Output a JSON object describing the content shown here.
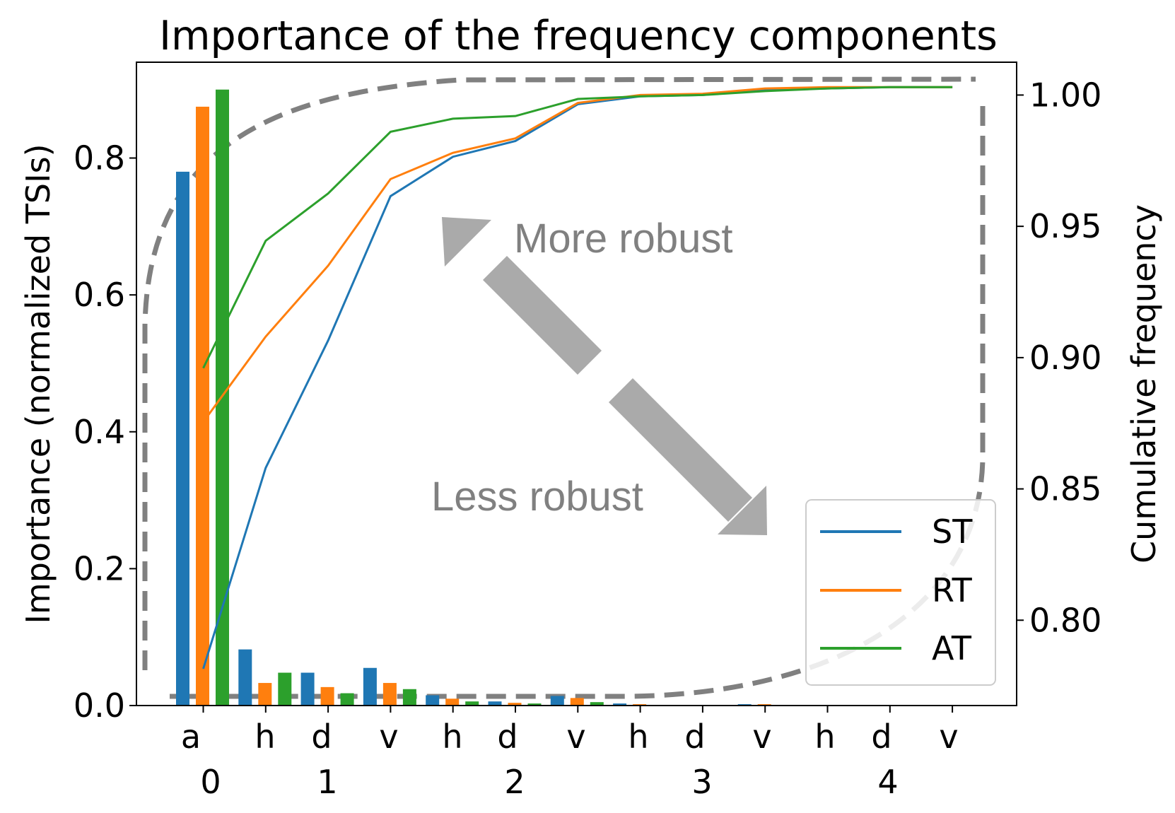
{
  "chart_data": {
    "type": "bar",
    "title": "Importance of the frequency components",
    "ylabel": "Importance (normalized TSIs)",
    "y2label": "Cumulative frequency",
    "ylim": [
      0,
      0.94
    ],
    "y2lim": [
      0.7675,
      1.0125
    ],
    "yticks": [
      "0.0",
      "0.2",
      "0.4",
      "0.6",
      "0.8"
    ],
    "y2ticks": [
      "0.80",
      "0.85",
      "0.90",
      "0.95",
      "1.00"
    ],
    "categories": [
      "a",
      "h",
      "d",
      "v",
      "h",
      "d",
      "v",
      "h",
      "d",
      "v",
      "h",
      "d",
      "v"
    ],
    "levels": [
      "0",
      "1",
      "2",
      "3",
      "4"
    ],
    "series": [
      {
        "name": "ST",
        "color": "#1f77b4",
        "bars": [
          0.78,
          0.082,
          0.048,
          0.055,
          0.015,
          0.006,
          0.014,
          0.003,
          0.0005,
          0.002,
          0.0003,
          0.0002,
          0.0001
        ],
        "cumulative": [
          0.7815,
          0.858,
          0.9065,
          0.9615,
          0.9765,
          0.9825,
          0.9965,
          0.9995,
          1.0,
          1.002,
          1.0025,
          1.003,
          1.003
        ]
      },
      {
        "name": "RT",
        "color": "#ff7f0e",
        "bars": [
          0.875,
          0.033,
          0.027,
          0.033,
          0.01,
          0.004,
          0.011,
          0.002,
          0.0005,
          0.002,
          0.0003,
          0.0002,
          0.0001
        ],
        "cumulative": [
          0.8755,
          0.908,
          0.935,
          0.968,
          0.978,
          0.9835,
          0.997,
          1.0,
          1.0005,
          1.0025,
          1.003,
          1.003,
          1.003
        ]
      },
      {
        "name": "AT",
        "color": "#2ca02c",
        "bars": [
          0.9,
          0.048,
          0.018,
          0.024,
          0.006,
          0.003,
          0.005,
          0.001,
          0.0003,
          0.001,
          0.0002,
          0.0001,
          0.0001
        ],
        "cumulative": [
          0.896,
          0.9445,
          0.9625,
          0.986,
          0.991,
          0.992,
          0.9985,
          0.9995,
          1.0,
          1.0015,
          1.0025,
          1.003,
          1.003
        ]
      }
    ],
    "legend_position": "lower-right",
    "grid": false,
    "annotations": {
      "more_robust": "More robust",
      "less_robust": "Less robust"
    }
  },
  "colors": {
    "arrow": "#aaaaaa",
    "dashed_guide": "#808080",
    "annotation_text": "#808080"
  }
}
